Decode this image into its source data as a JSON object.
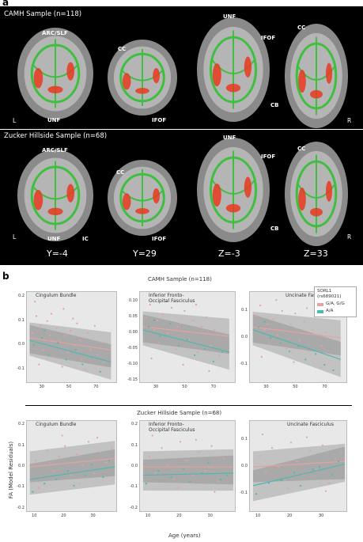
{
  "panel_a": {
    "letter": "a",
    "rows": [
      {
        "title": "CAMH Sample (n=118)",
        "left": "L",
        "right": "R",
        "labels": [
          "ARC/SLF",
          "UNF",
          "CC",
          "IFOF",
          "UNF",
          "IFOF",
          "CC",
          "CB"
        ]
      },
      {
        "title": "Zucker Hillside Sample (n=68)",
        "left": "L",
        "right": "R",
        "labels": [
          "ARC/SLF",
          "UNF",
          "IC",
          "CC",
          "IFOF",
          "UNF",
          "IFOF",
          "CC",
          "CB"
        ]
      }
    ],
    "coords": [
      "Y=-4",
      "Y=29",
      "Z=-3",
      "Z=33"
    ],
    "colors": {
      "background": "#000000",
      "tract": "#3fbf3f",
      "effect": "#e8391e",
      "brain_gray": "#8a8a8a"
    }
  },
  "panel_b": {
    "letter": "b",
    "rows": [
      {
        "sample_title": "CAMH Sample (n=118)"
      },
      {
        "sample_title": "Zucker Hillside Sample (n=68)"
      }
    ],
    "y_axis_label": "FA (Model Residuals)",
    "x_axis_label": "Age (years)",
    "legend": {
      "title": "SORL1\n(rs689021)",
      "entries": [
        {
          "label": "G/A, G/G",
          "color": "#e8a0a0"
        },
        {
          "label": "A/A",
          "color": "#4fb8b0"
        }
      ]
    }
  },
  "chart_data": [
    {
      "type": "scatter",
      "title": "Cingulum Bundle",
      "xticks": [
        "30",
        "50",
        "70"
      ],
      "yticks": [
        "0.2",
        "0.1",
        "0.0",
        "-0.1"
      ],
      "xlim": [
        18,
        85
      ],
      "ylim": [
        -0.16,
        0.22
      ],
      "series": [
        {
          "name": "G/A, G/G",
          "color": "#e8a0a0",
          "line": [
            [
              20,
              0.03
            ],
            [
              80,
              -0.02
            ]
          ],
          "points": [
            [
              22,
              0.05
            ],
            [
              25,
              0.12
            ],
            [
              28,
              0.08
            ],
            [
              30,
              -0.02
            ],
            [
              33,
              0.1
            ],
            [
              35,
              0.04
            ],
            [
              38,
              -0.05
            ],
            [
              40,
              0.07
            ],
            [
              42,
              0.02
            ],
            [
              45,
              0.15
            ],
            [
              48,
              -0.03
            ],
            [
              50,
              0.06
            ],
            [
              53,
              0.0
            ],
            [
              55,
              0.09
            ],
            [
              58,
              -0.06
            ],
            [
              60,
              0.03
            ],
            [
              63,
              0.05
            ],
            [
              65,
              -0.02
            ],
            [
              68,
              0.08
            ],
            [
              70,
              -0.04
            ],
            [
              73,
              0.01
            ],
            [
              75,
              -0.07
            ],
            [
              27,
              -0.08
            ],
            [
              36,
              0.13
            ],
            [
              44,
              -0.09
            ],
            [
              52,
              0.11
            ],
            [
              61,
              -0.1
            ],
            [
              24,
              0.18
            ],
            [
              46,
              0.04
            ],
            [
              57,
              0.02
            ]
          ]
        },
        {
          "name": "A/A",
          "color": "#4fb8b0",
          "line": [
            [
              20,
              0.02
            ],
            [
              80,
              -0.07
            ]
          ],
          "points": [
            [
              23,
              0.0
            ],
            [
              29,
              0.03
            ],
            [
              34,
              -0.04
            ],
            [
              41,
              0.01
            ],
            [
              47,
              -0.06
            ],
            [
              54,
              -0.02
            ],
            [
              59,
              -0.08
            ],
            [
              66,
              -0.05
            ],
            [
              72,
              -0.11
            ],
            [
              31,
              0.06
            ]
          ]
        }
      ]
    },
    {
      "type": "scatter",
      "title": "Inferior Fronto-Occipital Fasciculus",
      "xticks": [
        "30",
        "50",
        "70"
      ],
      "yticks": [
        "0.10",
        "0.05",
        "0.00",
        "-0.05",
        "-0.10",
        "-0.15"
      ],
      "xlim": [
        18,
        85
      ],
      "ylim": [
        -0.16,
        0.13
      ],
      "series": [
        {
          "name": "G/A, G/G",
          "color": "#e8a0a0",
          "line": [
            [
              20,
              0.02
            ],
            [
              80,
              -0.01
            ]
          ],
          "points": [
            [
              22,
              0.05
            ],
            [
              25,
              0.09
            ],
            [
              28,
              0.01
            ],
            [
              31,
              -0.03
            ],
            [
              34,
              0.06
            ],
            [
              37,
              0.0
            ],
            [
              40,
              0.08
            ],
            [
              43,
              -0.05
            ],
            [
              46,
              0.03
            ],
            [
              49,
              0.07
            ],
            [
              52,
              -0.02
            ],
            [
              55,
              0.04
            ],
            [
              58,
              -0.06
            ],
            [
              61,
              0.02
            ],
            [
              64,
              0.05
            ],
            [
              67,
              -0.04
            ],
            [
              70,
              0.01
            ],
            [
              73,
              -0.07
            ],
            [
              26,
              -0.08
            ],
            [
              36,
              0.1
            ],
            [
              48,
              -0.1
            ],
            [
              57,
              0.09
            ],
            [
              66,
              -0.12
            ],
            [
              30,
              0.04
            ],
            [
              44,
              0.02
            ]
          ]
        },
        {
          "name": "A/A",
          "color": "#4fb8b0",
          "line": [
            [
              20,
              0.01
            ],
            [
              80,
              -0.06
            ]
          ],
          "points": [
            [
              24,
              0.02
            ],
            [
              32,
              -0.01
            ],
            [
              39,
              0.03
            ],
            [
              45,
              -0.04
            ],
            [
              51,
              -0.02
            ],
            [
              56,
              -0.07
            ],
            [
              63,
              -0.05
            ],
            [
              69,
              -0.09
            ],
            [
              75,
              -0.06
            ],
            [
              28,
              0.04
            ]
          ]
        }
      ]
    },
    {
      "type": "scatter",
      "title": "Uncinate Fasciculus",
      "xticks": [
        "30",
        "50",
        "70"
      ],
      "yticks": [
        "0.1",
        "0.0",
        "-0.1"
      ],
      "xlim": [
        18,
        85
      ],
      "ylim": [
        -0.17,
        0.17
      ],
      "series": [
        {
          "name": "G/A, G/G",
          "color": "#e8a0a0",
          "line": [
            [
              20,
              0.04
            ],
            [
              80,
              0.0
            ]
          ],
          "points": [
            [
              22,
              0.08
            ],
            [
              25,
              0.12
            ],
            [
              28,
              0.03
            ],
            [
              31,
              -0.02
            ],
            [
              34,
              0.07
            ],
            [
              37,
              0.01
            ],
            [
              40,
              0.1
            ],
            [
              43,
              -0.04
            ],
            [
              46,
              0.05
            ],
            [
              49,
              0.09
            ],
            [
              52,
              -0.01
            ],
            [
              55,
              0.06
            ],
            [
              58,
              -0.05
            ],
            [
              61,
              0.03
            ],
            [
              64,
              0.08
            ],
            [
              67,
              -0.03
            ],
            [
              70,
              0.02
            ],
            [
              73,
              -0.06
            ],
            [
              26,
              -0.07
            ],
            [
              36,
              0.14
            ],
            [
              48,
              -0.09
            ],
            [
              57,
              0.11
            ],
            [
              66,
              -0.11
            ],
            [
              30,
              0.05
            ]
          ]
        },
        {
          "name": "A/A",
          "color": "#4fb8b0",
          "line": [
            [
              20,
              0.03
            ],
            [
              80,
              -0.08
            ]
          ],
          "points": [
            [
              24,
              0.04
            ],
            [
              32,
              0.0
            ],
            [
              39,
              -0.02
            ],
            [
              45,
              -0.05
            ],
            [
              51,
              -0.03
            ],
            [
              56,
              -0.08
            ],
            [
              63,
              -0.06
            ],
            [
              69,
              -0.1
            ],
            [
              75,
              -0.12
            ],
            [
              28,
              0.06
            ]
          ]
        }
      ]
    },
    {
      "type": "scatter",
      "title": "Cingulum Bundle",
      "xticks": [
        "10",
        "20",
        "30"
      ],
      "yticks": [
        "0.2",
        "0.1",
        "0.0",
        "-0.1",
        "-0.2"
      ],
      "xlim": [
        7,
        38
      ],
      "ylim": [
        -0.22,
        0.22
      ],
      "series": [
        {
          "name": "G/A, G/G",
          "color": "#e8a0a0",
          "line": [
            [
              8,
              0.0
            ],
            [
              37,
              0.04
            ]
          ],
          "points": [
            [
              10,
              0.03
            ],
            [
              12,
              -0.05
            ],
            [
              14,
              0.08
            ],
            [
              16,
              -0.02
            ],
            [
              18,
              0.05
            ],
            [
              20,
              0.1
            ],
            [
              22,
              -0.04
            ],
            [
              24,
              0.06
            ],
            [
              26,
              0.01
            ],
            [
              28,
              0.12
            ],
            [
              30,
              -0.03
            ],
            [
              32,
              0.07
            ],
            [
              34,
              0.02
            ],
            [
              36,
              0.09
            ],
            [
              11,
              -0.1
            ],
            [
              19,
              0.15
            ],
            [
              25,
              -0.08
            ],
            [
              31,
              0.14
            ],
            [
              15,
              0.02
            ]
          ]
        },
        {
          "name": "A/A",
          "color": "#4fb8b0",
          "line": [
            [
              8,
              -0.06
            ],
            [
              37,
              0.0
            ]
          ],
          "points": [
            [
              9,
              -0.12
            ],
            [
              13,
              -0.08
            ],
            [
              17,
              -0.06
            ],
            [
              21,
              -0.02
            ],
            [
              23,
              -0.09
            ],
            [
              27,
              -0.04
            ],
            [
              29,
              0.01
            ],
            [
              33,
              -0.05
            ],
            [
              35,
              0.03
            ]
          ]
        }
      ]
    },
    {
      "type": "scatter",
      "title": "Inferior Fronto-Occipital Fasciculus",
      "xticks": [
        "10",
        "20",
        "30"
      ],
      "yticks": [
        "0.2",
        "0.1",
        "0.0",
        "-0.1",
        "-0.2"
      ],
      "xlim": [
        7,
        38
      ],
      "ylim": [
        -0.22,
        0.22
      ],
      "series": [
        {
          "name": "G/A, G/G",
          "color": "#e8a0a0",
          "line": [
            [
              8,
              0.0
            ],
            [
              37,
              0.0
            ]
          ],
          "points": [
            [
              10,
              0.05
            ],
            [
              12,
              -0.03
            ],
            [
              14,
              0.09
            ],
            [
              16,
              0.01
            ],
            [
              18,
              -0.06
            ],
            [
              20,
              0.12
            ],
            [
              22,
              0.03
            ],
            [
              24,
              -0.04
            ],
            [
              26,
              0.07
            ],
            [
              28,
              -0.02
            ],
            [
              30,
              0.1
            ],
            [
              32,
              -0.07
            ],
            [
              34,
              0.04
            ],
            [
              36,
              0.0
            ],
            [
              11,
              0.15
            ],
            [
              19,
              -0.1
            ],
            [
              25,
              0.13
            ],
            [
              31,
              -0.12
            ]
          ]
        },
        {
          "name": "A/A",
          "color": "#4fb8b0",
          "line": [
            [
              8,
              -0.04
            ],
            [
              37,
              -0.03
            ]
          ],
          "points": [
            [
              9,
              -0.08
            ],
            [
              13,
              -0.02
            ],
            [
              17,
              -0.05
            ],
            [
              21,
              -0.01
            ],
            [
              23,
              -0.07
            ],
            [
              27,
              -0.03
            ],
            [
              29,
              0.02
            ],
            [
              33,
              -0.06
            ],
            [
              35,
              -0.04
            ]
          ]
        }
      ]
    },
    {
      "type": "scatter",
      "title": "Uncinate Fasciculus",
      "xticks": [
        "10",
        "20",
        "30"
      ],
      "yticks": [
        "0.1",
        "0.0",
        "-0.1"
      ],
      "xlim": [
        7,
        38
      ],
      "ylim": [
        -0.17,
        0.17
      ],
      "series": [
        {
          "name": "G/A, G/G",
          "color": "#e8a0a0",
          "line": [
            [
              8,
              0.0
            ],
            [
              37,
              0.02
            ]
          ],
          "points": [
            [
              10,
              0.04
            ],
            [
              12,
              -0.02
            ],
            [
              14,
              0.07
            ],
            [
              16,
              0.0
            ],
            [
              18,
              -0.05
            ],
            [
              20,
              0.09
            ],
            [
              22,
              0.02
            ],
            [
              24,
              -0.03
            ],
            [
              26,
              0.06
            ],
            [
              28,
              -0.01
            ],
            [
              30,
              0.08
            ],
            [
              32,
              -0.06
            ],
            [
              34,
              0.03
            ],
            [
              36,
              0.05
            ],
            [
              11,
              0.12
            ],
            [
              19,
              -0.08
            ],
            [
              25,
              0.11
            ],
            [
              31,
              -0.09
            ]
          ]
        },
        {
          "name": "A/A",
          "color": "#4fb8b0",
          "line": [
            [
              8,
              -0.07
            ],
            [
              37,
              0.01
            ]
          ],
          "points": [
            [
              9,
              -0.1
            ],
            [
              13,
              -0.06
            ],
            [
              17,
              -0.05
            ],
            [
              21,
              -0.02
            ],
            [
              23,
              -0.07
            ],
            [
              27,
              -0.01
            ],
            [
              29,
              0.0
            ],
            [
              33,
              -0.03
            ],
            [
              35,
              0.02
            ]
          ]
        }
      ]
    }
  ]
}
